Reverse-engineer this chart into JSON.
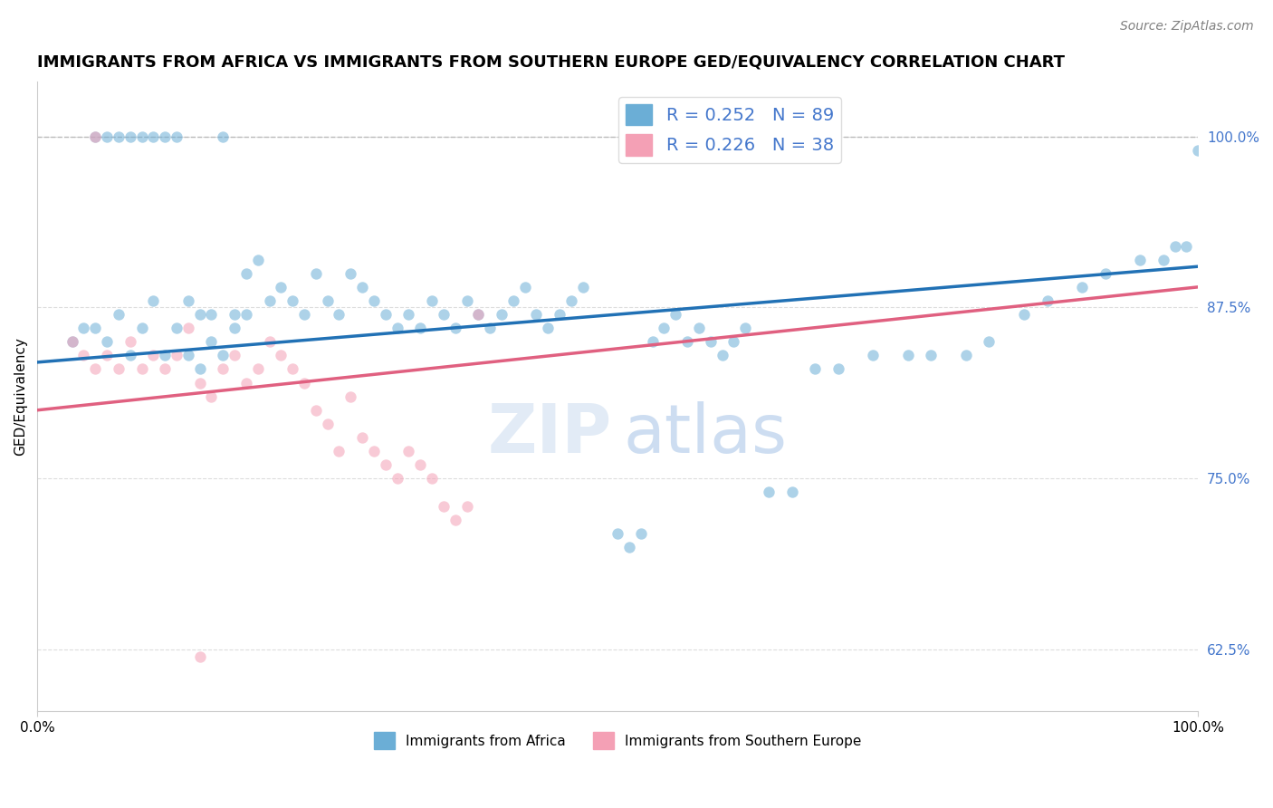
{
  "title": "IMMIGRANTS FROM AFRICA VS IMMIGRANTS FROM SOUTHERN EUROPE GED/EQUIVALENCY CORRELATION CHART",
  "source": "Source: ZipAtlas.com",
  "ylabel": "GED/Equivalency",
  "legend_blue_r": "R = 0.252",
  "legend_blue_n": "N = 89",
  "legend_pink_r": "R = 0.226",
  "legend_pink_n": "N = 38",
  "y_ticks": [
    62.5,
    75.0,
    87.5,
    100.0
  ],
  "y_tick_labels": [
    "62.5%",
    "75.0%",
    "87.5%",
    "100.0%"
  ],
  "xlim": [
    0,
    100
  ],
  "ylim": [
    58,
    104
  ],
  "blue_color": "#6baed6",
  "pink_color": "#f4a0b5",
  "blue_line_color": "#2171b5",
  "pink_line_color": "#e06080",
  "title_fontsize": 13,
  "axis_label_fontsize": 11,
  "tick_label_fontsize": 11,
  "scatter_alpha": 0.55,
  "scatter_size": 80,
  "blue_line_x": [
    0,
    100
  ],
  "blue_line_y_start": 83.5,
  "blue_line_y_end": 90.5,
  "pink_line_x": [
    0,
    100
  ],
  "pink_line_y_start": 80.0,
  "pink_line_y_end": 89.0,
  "bottom_legend_blue": "Immigrants from Africa",
  "bottom_legend_pink": "Immigrants from Southern Europe",
  "blue_scatter_x": [
    3,
    4,
    5,
    5,
    6,
    6,
    7,
    7,
    8,
    8,
    9,
    9,
    10,
    10,
    11,
    11,
    12,
    12,
    13,
    13,
    14,
    14,
    15,
    15,
    16,
    16,
    17,
    17,
    18,
    18,
    19,
    20,
    21,
    22,
    23,
    24,
    25,
    26,
    27,
    28,
    29,
    30,
    31,
    32,
    33,
    34,
    35,
    36,
    37,
    38,
    39,
    40,
    41,
    42,
    43,
    44,
    45,
    46,
    47,
    50,
    51,
    52,
    53,
    54,
    55,
    56,
    57,
    58,
    59,
    60,
    61,
    63,
    65,
    67,
    69,
    72,
    75,
    77,
    80,
    82,
    85,
    87,
    90,
    92,
    95,
    97,
    98,
    99,
    100
  ],
  "blue_scatter_y": [
    85,
    86,
    100,
    86,
    100,
    85,
    100,
    87,
    100,
    84,
    100,
    86,
    100,
    88,
    100,
    84,
    100,
    86,
    88,
    84,
    87,
    83,
    87,
    85,
    100,
    84,
    86,
    87,
    87,
    90,
    91,
    88,
    89,
    88,
    87,
    90,
    88,
    87,
    90,
    89,
    88,
    87,
    86,
    87,
    86,
    88,
    87,
    86,
    88,
    87,
    86,
    87,
    88,
    89,
    87,
    86,
    87,
    88,
    89,
    71,
    70,
    71,
    85,
    86,
    87,
    85,
    86,
    85,
    84,
    85,
    86,
    74,
    74,
    83,
    83,
    84,
    84,
    84,
    84,
    85,
    87,
    88,
    89,
    90,
    91,
    91,
    92,
    92,
    99
  ],
  "pink_scatter_x": [
    3,
    4,
    5,
    5,
    6,
    7,
    8,
    9,
    10,
    11,
    12,
    13,
    14,
    15,
    16,
    17,
    18,
    19,
    20,
    21,
    22,
    23,
    24,
    25,
    26,
    27,
    28,
    29,
    30,
    31,
    32,
    33,
    34,
    35,
    36,
    37,
    38,
    14
  ],
  "pink_scatter_y": [
    85,
    84,
    100,
    83,
    84,
    83,
    85,
    83,
    84,
    83,
    84,
    86,
    82,
    81,
    83,
    84,
    82,
    83,
    85,
    84,
    83,
    82,
    80,
    79,
    77,
    81,
    78,
    77,
    76,
    75,
    77,
    76,
    75,
    73,
    72,
    73,
    87,
    62
  ]
}
